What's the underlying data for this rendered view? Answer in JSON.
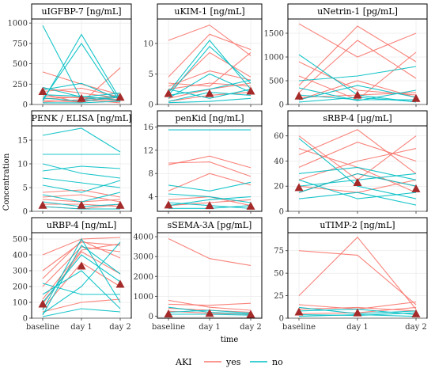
{
  "figure": {
    "xlabel": "time",
    "ylabel": "Concentration",
    "legend": {
      "title": "AKI",
      "placement": "bottom",
      "entries": [
        {
          "label": "yes",
          "color": "#f8766d"
        },
        {
          "label": "no",
          "color": "#00bfc4"
        }
      ]
    }
  },
  "colors": {
    "yes": "#f8766d",
    "no": "#00bfc4",
    "median_marker": "#a52a2a",
    "grid": "#e0e0e0"
  },
  "chart_data": [
    {
      "type": "line",
      "title": "uIGFBP-7 [ng/mL]",
      "categories": [
        "baseline",
        "day 1",
        "day 2"
      ],
      "ylim": [
        0,
        1050
      ],
      "yticks": [
        0,
        250,
        500,
        750,
        1000
      ],
      "series": [
        {
          "group": "yes",
          "values": [
            400,
            250,
            120
          ]
        },
        {
          "group": "yes",
          "values": [
            160,
            200,
            90
          ]
        },
        {
          "group": "yes",
          "values": [
            130,
            20,
            450
          ]
        },
        {
          "group": "yes",
          "values": [
            100,
            80,
            40
          ]
        },
        {
          "group": "yes",
          "values": [
            70,
            90,
            60
          ]
        },
        {
          "group": "yes",
          "values": [
            50,
            30,
            110
          ]
        },
        {
          "group": "yes",
          "values": [
            200,
            140,
            80
          ]
        },
        {
          "group": "yes",
          "values": [
            30,
            60,
            20
          ]
        },
        {
          "group": "no",
          "values": [
            970,
            60,
            110
          ]
        },
        {
          "group": "no",
          "values": [
            40,
            860,
            60
          ]
        },
        {
          "group": "no",
          "values": [
            60,
            750,
            30
          ]
        },
        {
          "group": "no",
          "values": [
            180,
            260,
            60
          ]
        },
        {
          "group": "no",
          "values": [
            210,
            90,
            140
          ]
        },
        {
          "group": "no",
          "values": [
            120,
            100,
            50
          ]
        },
        {
          "group": "no",
          "values": [
            80,
            40,
            90
          ]
        },
        {
          "group": "no",
          "values": [
            20,
            20,
            40
          ]
        }
      ],
      "medians": [
        160,
        75,
        90
      ]
    },
    {
      "type": "line",
      "title": "uKIM-1 [ng/mL]",
      "categories": [
        "baseline",
        "day 1",
        "day 2"
      ],
      "ylim": [
        0,
        14
      ],
      "yticks": [
        0,
        5,
        10
      ],
      "series": [
        {
          "group": "yes",
          "values": [
            10.5,
            13,
            8
          ]
        },
        {
          "group": "yes",
          "values": [
            4.5,
            11.5,
            9
          ]
        },
        {
          "group": "yes",
          "values": [
            2,
            8.5,
            4.5
          ]
        },
        {
          "group": "yes",
          "values": [
            3,
            5.5,
            4
          ]
        },
        {
          "group": "yes",
          "values": [
            1,
            2.5,
            3.5
          ]
        },
        {
          "group": "yes",
          "values": [
            3.5,
            3,
            8.5
          ]
        },
        {
          "group": "yes",
          "values": [
            0.5,
            1.5,
            2
          ]
        },
        {
          "group": "yes",
          "values": [
            2.5,
            3.5,
            3
          ]
        },
        {
          "group": "no",
          "values": [
            2,
            10.5,
            2.5
          ]
        },
        {
          "group": "no",
          "values": [
            1.5,
            9.5,
            3.5
          ]
        },
        {
          "group": "no",
          "values": [
            1,
            5,
            2
          ]
        },
        {
          "group": "no",
          "values": [
            0.5,
            2,
            1.5
          ]
        },
        {
          "group": "no",
          "values": [
            2.5,
            1,
            2.5
          ]
        },
        {
          "group": "no",
          "values": [
            0.3,
            0.5,
            1
          ]
        },
        {
          "group": "no",
          "values": [
            1.5,
            2.5,
            4
          ]
        }
      ],
      "medians": [
        1.8,
        1.8,
        2.2
      ]
    },
    {
      "type": "line",
      "title": "uNetrin-1 [pg/mL]",
      "categories": [
        "baseline",
        "day 1",
        "day 2"
      ],
      "ylim": [
        0,
        1800
      ],
      "yticks": [
        0,
        500,
        1000,
        1500
      ],
      "series": [
        {
          "group": "yes",
          "values": [
            1700,
            1000,
            1500
          ]
        },
        {
          "group": "yes",
          "values": [
            400,
            1650,
            900
          ]
        },
        {
          "group": "yes",
          "values": [
            250,
            1350,
            550
          ]
        },
        {
          "group": "yes",
          "values": [
            900,
            300,
            200
          ]
        },
        {
          "group": "yes",
          "values": [
            150,
            200,
            250
          ]
        },
        {
          "group": "yes",
          "values": [
            600,
            100,
            1100
          ]
        },
        {
          "group": "yes",
          "values": [
            100,
            500,
            150
          ]
        },
        {
          "group": "no",
          "values": [
            1050,
            200,
            50
          ]
        },
        {
          "group": "no",
          "values": [
            500,
            600,
            800
          ]
        },
        {
          "group": "no",
          "values": [
            100,
            400,
            150
          ]
        },
        {
          "group": "no",
          "values": [
            200,
            100,
            100
          ]
        },
        {
          "group": "no",
          "values": [
            50,
            150,
            60
          ]
        },
        {
          "group": "no",
          "values": [
            350,
            80,
            300
          ]
        }
      ],
      "medians": [
        180,
        200,
        130
      ]
    },
    {
      "type": "line",
      "title": "PENK / ELISA [ng/mL]",
      "categories": [
        "baseline",
        "day 1",
        "day 2"
      ],
      "ylim": [
        0,
        18
      ],
      "yticks": [
        0,
        5,
        10,
        15
      ],
      "series": [
        {
          "group": "yes",
          "values": [
            4,
            4.5,
            3
          ]
        },
        {
          "group": "yes",
          "values": [
            2.5,
            2,
            2.5
          ]
        },
        {
          "group": "yes",
          "values": [
            1.5,
            1.5,
            1
          ]
        },
        {
          "group": "yes",
          "values": [
            1,
            0.5,
            1.5
          ]
        },
        {
          "group": "yes",
          "values": [
            3,
            3.5,
            2
          ]
        },
        {
          "group": "no",
          "values": [
            16,
            17.5,
            12.5
          ]
        },
        {
          "group": "no",
          "values": [
            12,
            12,
            12
          ]
        },
        {
          "group": "no",
          "values": [
            10,
            8,
            7
          ]
        },
        {
          "group": "no",
          "values": [
            8.5,
            9.5,
            9
          ]
        },
        {
          "group": "no",
          "values": [
            7,
            6,
            5
          ]
        },
        {
          "group": "no",
          "values": [
            5.5,
            4,
            6.5
          ]
        },
        {
          "group": "no",
          "values": [
            3.5,
            2,
            4
          ]
        },
        {
          "group": "no",
          "values": [
            2,
            1,
            1.5
          ]
        },
        {
          "group": "no",
          "values": [
            1,
            0.5,
            0.5
          ]
        }
      ],
      "medians": [
        1.3,
        1.3,
        1.3
      ]
    },
    {
      "type": "line",
      "title": "penKid [ng/mL]",
      "categories": [
        "baseline",
        "day 1",
        "day 2"
      ],
      "ylim": [
        1.5,
        16.2
      ],
      "yticks": [
        4,
        8,
        12,
        16
      ],
      "series": [
        {
          "group": "yes",
          "values": [
            9.5,
            11,
            9
          ]
        },
        {
          "group": "yes",
          "values": [
            9.8,
            10,
            7.5
          ]
        },
        {
          "group": "yes",
          "values": [
            5,
            8,
            6
          ]
        },
        {
          "group": "yes",
          "values": [
            3.5,
            4,
            2.5
          ]
        },
        {
          "group": "yes",
          "values": [
            2.5,
            3,
            3.5
          ]
        },
        {
          "group": "no",
          "values": [
            15.5,
            15.5,
            15.5
          ]
        },
        {
          "group": "no",
          "values": [
            6,
            5,
            6.5
          ]
        },
        {
          "group": "no",
          "values": [
            4.5,
            4,
            3
          ]
        },
        {
          "group": "no",
          "values": [
            3,
            2.5,
            2
          ]
        },
        {
          "group": "no",
          "values": [
            2,
            2,
            2.5
          ]
        },
        {
          "group": "no",
          "values": [
            2.5,
            3.5,
            4
          ]
        }
      ],
      "medians": [
        2.6,
        2.5,
        2.4
      ]
    },
    {
      "type": "line",
      "title": "sRBP-4 [μg/mL]",
      "categories": [
        "baseline",
        "day 1",
        "day 2"
      ],
      "ylim": [
        0,
        68
      ],
      "yticks": [
        0,
        20,
        40,
        60
      ],
      "series": [
        {
          "group": "yes",
          "values": [
            60,
            25,
            60
          ]
        },
        {
          "group": "yes",
          "values": [
            45,
            65,
            30
          ]
        },
        {
          "group": "yes",
          "values": [
            35,
            55,
            40
          ]
        },
        {
          "group": "yes",
          "values": [
            25,
            40,
            50
          ]
        },
        {
          "group": "yes",
          "values": [
            15,
            30,
            20
          ]
        },
        {
          "group": "yes",
          "values": [
            20,
            15,
            25
          ]
        },
        {
          "group": "yes",
          "values": [
            50,
            35,
            15
          ]
        },
        {
          "group": "no",
          "values": [
            58,
            20,
            10
          ]
        },
        {
          "group": "no",
          "values": [
            30,
            35,
            25
          ]
        },
        {
          "group": "no",
          "values": [
            20,
            25,
            30
          ]
        },
        {
          "group": "no",
          "values": [
            10,
            15,
            5
          ]
        },
        {
          "group": "no",
          "values": [
            15,
            30,
            20
          ]
        },
        {
          "group": "no",
          "values": [
            25,
            10,
            15
          ]
        }
      ],
      "medians": [
        19,
        23,
        18
      ]
    },
    {
      "type": "line",
      "title": "uRBP-4 [ng/mL]",
      "categories": [
        "baseline",
        "day 1",
        "day 2"
      ],
      "ylim": [
        0,
        540
      ],
      "yticks": [
        0,
        100,
        200,
        300,
        400,
        500
      ],
      "series": [
        {
          "group": "yes",
          "values": [
            400,
            500,
            510
          ]
        },
        {
          "group": "yes",
          "values": [
            300,
            480,
            460
          ]
        },
        {
          "group": "yes",
          "values": [
            200,
            450,
            420
          ]
        },
        {
          "group": "yes",
          "values": [
            120,
            430,
            470
          ]
        },
        {
          "group": "yes",
          "values": [
            60,
            350,
            200
          ]
        },
        {
          "group": "yes",
          "values": [
            90,
            420,
            280
          ]
        },
        {
          "group": "yes",
          "values": [
            250,
            490,
            380
          ]
        },
        {
          "group": "yes",
          "values": [
            40,
            100,
            120
          ]
        },
        {
          "group": "no",
          "values": [
            50,
            500,
            100
          ]
        },
        {
          "group": "no",
          "values": [
            20,
            460,
            280
          ]
        },
        {
          "group": "no",
          "values": [
            100,
            400,
            230
          ]
        },
        {
          "group": "no",
          "values": [
            150,
            300,
            60
          ]
        },
        {
          "group": "no",
          "values": [
            30,
            200,
            480
          ]
        },
        {
          "group": "no",
          "values": [
            10,
            60,
            40
          ]
        },
        {
          "group": "no",
          "values": [
            220,
            150,
            150
          ]
        }
      ],
      "medians": [
        90,
        330,
        215
      ]
    },
    {
      "type": "line",
      "title": "sSEMA-3A [pg/mL]",
      "categories": [
        "baseline",
        "day 1",
        "day 2"
      ],
      "ylim": [
        -100,
        4200
      ],
      "yticks": [
        0,
        1000,
        2000,
        3000,
        4000
      ],
      "series": [
        {
          "group": "yes",
          "values": [
            3900,
            2900,
            2550
          ]
        },
        {
          "group": "yes",
          "values": [
            800,
            450,
            300
          ]
        },
        {
          "group": "yes",
          "values": [
            600,
            550,
            650
          ]
        },
        {
          "group": "yes",
          "values": [
            400,
            300,
            200
          ]
        },
        {
          "group": "yes",
          "values": [
            250,
            150,
            100
          ]
        },
        {
          "group": "no",
          "values": [
            450,
            200,
            100
          ]
        },
        {
          "group": "no",
          "values": [
            200,
            300,
            150
          ]
        },
        {
          "group": "no",
          "values": [
            100,
            100,
            50
          ]
        }
      ],
      "medians": [
        120,
        150,
        100
      ]
    },
    {
      "type": "line",
      "title": "uTIMP-2 [ng/mL]",
      "categories": [
        "baseline",
        "day 1",
        "day 2"
      ],
      "ylim": [
        0,
        95
      ],
      "yticks": [
        0,
        25,
        50,
        75
      ],
      "series": [
        {
          "group": "yes",
          "values": [
            75,
            70,
            15
          ]
        },
        {
          "group": "yes",
          "values": [
            25,
            90,
            10
          ]
        },
        {
          "group": "yes",
          "values": [
            15,
            10,
            18
          ]
        },
        {
          "group": "yes",
          "values": [
            10,
            12,
            8
          ]
        },
        {
          "group": "yes",
          "values": [
            5,
            6,
            12
          ]
        },
        {
          "group": "no",
          "values": [
            12,
            5,
            8
          ]
        },
        {
          "group": "no",
          "values": [
            8,
            10,
            4
          ]
        },
        {
          "group": "no",
          "values": [
            4,
            3,
            6
          ]
        },
        {
          "group": "no",
          "values": [
            2,
            4,
            2
          ]
        }
      ],
      "medians": [
        7,
        6,
        5
      ]
    }
  ]
}
